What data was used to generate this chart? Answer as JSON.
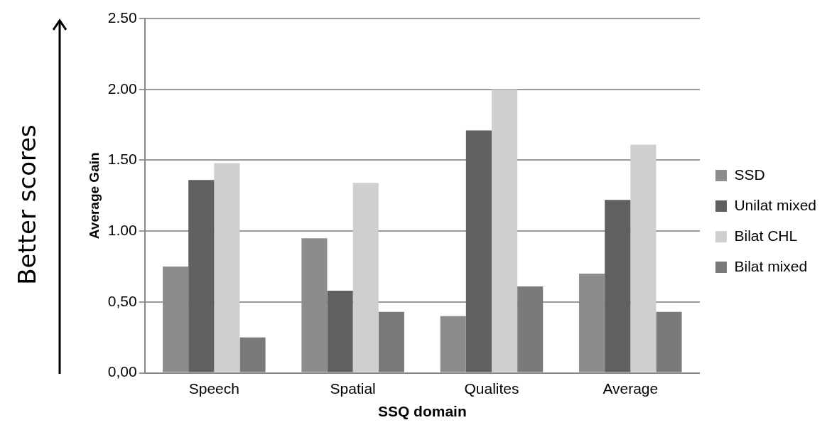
{
  "chart_data": {
    "type": "bar",
    "xlabel": "SSQ domain",
    "ylabel": "Average Gain",
    "categories": [
      "Speech",
      "Spatial",
      "Qualites",
      "Average"
    ],
    "series": [
      {
        "name": "SSD",
        "color": "#8c8c8c",
        "values": [
          0.75,
          0.95,
          0.4,
          0.7
        ]
      },
      {
        "name": "Unilat mixed",
        "color": "#606060",
        "values": [
          1.36,
          0.58,
          1.71,
          1.22
        ]
      },
      {
        "name": "Bilat CHL",
        "color": "#cfcfcf",
        "values": [
          1.48,
          1.34,
          2.0,
          1.61
        ]
      },
      {
        "name": "Bilat mixed",
        "color": "#7a7a7a",
        "values": [
          0.25,
          0.43,
          0.61,
          0.43
        ]
      }
    ],
    "ylim": [
      0,
      2.5
    ],
    "yticks": [
      {
        "value": 0,
        "label": "0,00"
      },
      {
        "value": 0.5,
        "label": "0,50"
      },
      {
        "value": 1,
        "label": "1.00"
      },
      {
        "value": 1.5,
        "label": "1.50"
      },
      {
        "value": 2,
        "label": "2.00"
      },
      {
        "value": 2.5,
        "label": "2.50"
      }
    ],
    "grid": "y",
    "legend": "right",
    "annotations": [
      "Better scores"
    ]
  }
}
